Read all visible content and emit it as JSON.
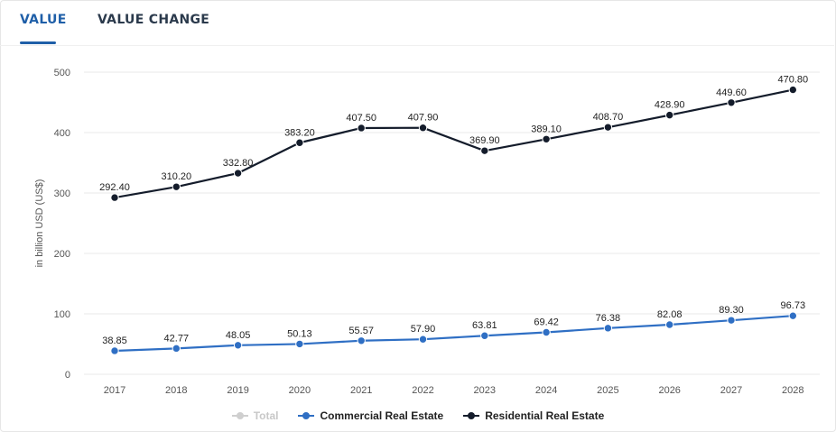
{
  "tabs": [
    {
      "label": "VALUE",
      "active": true
    },
    {
      "label": "VALUE CHANGE",
      "active": false
    }
  ],
  "colors": {
    "commercial": "#2f6fc4",
    "residential": "#141c2b",
    "total": "#cfcfcf",
    "grid": "#e9e9e9",
    "axis_text": "#555555",
    "label_text": "#222222"
  },
  "chart_data": {
    "type": "line",
    "title": "",
    "xlabel": "",
    "ylabel": "in billion USD (US$)",
    "ylim": [
      0,
      500
    ],
    "yticks": [
      0,
      100,
      200,
      300,
      400,
      500
    ],
    "grid": true,
    "legend_position": "bottom",
    "categories": [
      "2017",
      "2018",
      "2019",
      "2020",
      "2021",
      "2022",
      "2023",
      "2024",
      "2025",
      "2026",
      "2027",
      "2028"
    ],
    "series": [
      {
        "name": "Commercial Real Estate",
        "values": [
          38.85,
          42.77,
          48.05,
          50.13,
          55.57,
          57.9,
          63.81,
          69.42,
          76.38,
          82.08,
          89.3,
          96.73
        ],
        "labels": [
          "38.85",
          "42.77",
          "48.05",
          "50.13",
          "55.57",
          "57.90",
          "63.81",
          "69.42",
          "76.38",
          "82.08",
          "89.30",
          "96.73"
        ]
      },
      {
        "name": "Residential Real Estate",
        "values": [
          292.4,
          310.2,
          332.8,
          383.2,
          407.5,
          407.9,
          369.9,
          389.1,
          408.7,
          428.9,
          449.6,
          470.8
        ],
        "labels": [
          "292.40",
          "310.20",
          "332.80",
          "383.20",
          "407.50",
          "407.90",
          "369.90",
          "389.10",
          "408.70",
          "428.90",
          "449.60",
          "470.80"
        ]
      }
    ],
    "legend": [
      {
        "name": "Total",
        "visible": false
      },
      {
        "name": "Commercial Real Estate",
        "visible": true
      },
      {
        "name": "Residential Real Estate",
        "visible": true
      }
    ]
  }
}
